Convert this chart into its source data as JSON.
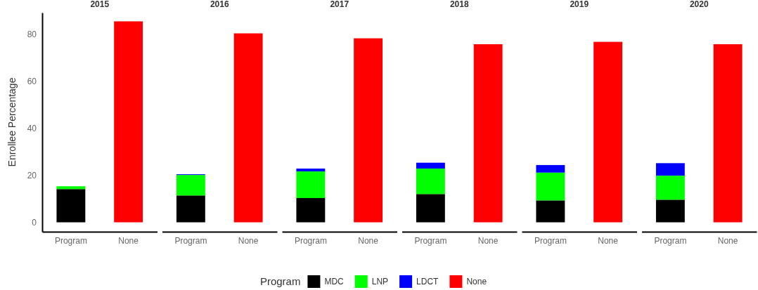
{
  "chart_data": [
    {
      "type": "bar",
      "title": "2015",
      "ylabel": "Enrollee Percentage",
      "legend_title": "Program",
      "legend": "bottom",
      "stacked": true,
      "categories": [
        "Program",
        "None"
      ],
      "ylim": [
        -4,
        89
      ],
      "yticks": [
        0,
        20,
        40,
        60,
        80
      ],
      "series": [
        {
          "name": "MDC",
          "color": "#000000",
          "values": [
            14.1,
            null
          ]
        },
        {
          "name": "LNP",
          "color": "#00ff00",
          "values": [
            1.2,
            null
          ]
        },
        {
          "name": "LDCT",
          "color": "#0000ff",
          "values": [
            0,
            null
          ]
        },
        {
          "name": "None",
          "color": "#ff0000",
          "values": [
            null,
            85.3
          ]
        }
      ]
    },
    {
      "type": "bar",
      "title": "2016",
      "stacked": true,
      "tick_labels": "x",
      "categories": [
        "Program",
        "None"
      ],
      "yticks": [
        0,
        20,
        40,
        60,
        80
      ],
      "series": [
        {
          "color": "#000000",
          "values": [
            11.4,
            null
          ]
        },
        {
          "color": "#00ff00",
          "values": [
            8.7,
            null
          ]
        },
        {
          "color": "#0000ff",
          "values": [
            0.3,
            null
          ]
        },
        {
          "color": "#ff0000",
          "values": [
            null,
            80.2
          ]
        }
      ]
    },
    {
      "type": "bar",
      "title": "2017",
      "stacked": true,
      "tick_labels": "x",
      "categories": [
        "Program",
        "None"
      ],
      "yticks": [
        0,
        20,
        40,
        60,
        80
      ],
      "series": [
        {
          "color": "#000000",
          "values": [
            10.3,
            null
          ]
        },
        {
          "color": "#00ff00",
          "values": [
            11.3,
            null
          ]
        },
        {
          "color": "#0000ff",
          "values": [
            1.2,
            null
          ]
        },
        {
          "color": "#ff0000",
          "values": [
            null,
            78.1
          ]
        }
      ]
    },
    {
      "type": "bar",
      "title": "2018",
      "stacked": true,
      "tick_labels": "x",
      "categories": [
        "Program",
        "None"
      ],
      "yticks": [
        0,
        20,
        40,
        60,
        80
      ],
      "series": [
        {
          "color": "#000000",
          "values": [
            12.0,
            null
          ]
        },
        {
          "color": "#00ff00",
          "values": [
            10.8,
            null
          ]
        },
        {
          "color": "#0000ff",
          "values": [
            2.5,
            null
          ]
        },
        {
          "color": "#ff0000",
          "values": [
            null,
            75.6
          ]
        }
      ]
    },
    {
      "type": "bar",
      "title": "2019",
      "stacked": true,
      "tick_labels": "x",
      "categories": [
        "Program",
        "None"
      ],
      "yticks": [
        0,
        20,
        40,
        60,
        80
      ],
      "series": [
        {
          "color": "#000000",
          "values": [
            9.3,
            null
          ]
        },
        {
          "color": "#00ff00",
          "values": [
            11.8,
            null
          ]
        },
        {
          "color": "#0000ff",
          "values": [
            3.2,
            null
          ]
        },
        {
          "color": "#ff0000",
          "values": [
            null,
            76.6
          ]
        }
      ]
    },
    {
      "type": "bar",
      "title": "2020",
      "stacked": true,
      "tick_labels": "x",
      "categories": [
        "Program",
        "None"
      ],
      "yticks": [
        0,
        20,
        40,
        60,
        80
      ],
      "series": [
        {
          "color": "#000000",
          "values": [
            9.6,
            null
          ]
        },
        {
          "color": "#00ff00",
          "values": [
            10.2,
            null
          ]
        },
        {
          "color": "#0000ff",
          "values": [
            5.3,
            null
          ]
        },
        {
          "color": "#ff0000",
          "values": [
            null,
            75.6
          ]
        }
      ]
    }
  ]
}
